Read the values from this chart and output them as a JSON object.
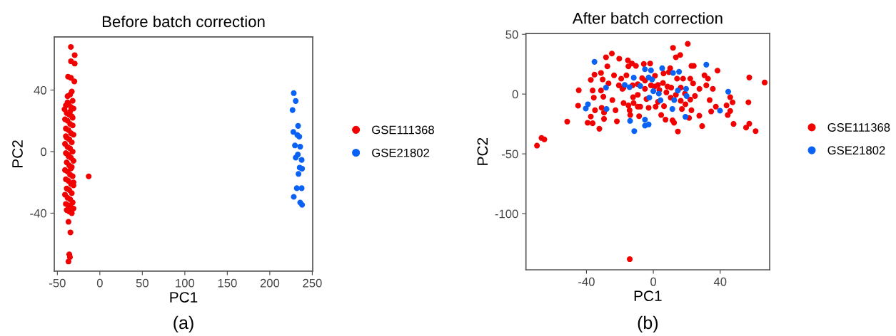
{
  "chart_data": [
    {
      "type": "scatter",
      "title": "Before batch correction",
      "xlabel": "PC1",
      "ylabel": "PC2",
      "xlim": [
        -53.6,
        250.5
      ],
      "ylim": [
        -77.7,
        74.5
      ],
      "xticks": [
        -50,
        0,
        50,
        100,
        150,
        200,
        250
      ],
      "yticks": [
        -40,
        0,
        40
      ],
      "grid": false,
      "marker": "circle",
      "legend": "right",
      "annotations": [
        "(a)"
      ],
      "series": [
        {
          "name": "GSE111368",
          "color": "#f20000",
          "x": [
            -34.1,
            -29.6,
            -34,
            -29.6,
            -37.4,
            -34,
            -30,
            -33,
            -41.6,
            -13.1,
            -36.9,
            -34.6,
            -36,
            -35.2,
            -36.9,
            -38,
            -35,
            -32,
            -40,
            -37,
            -34,
            -31,
            -39,
            -36,
            -33,
            -41,
            -38,
            -35,
            -32,
            -40,
            -37,
            -34,
            -31,
            -39,
            -36,
            -33,
            -41,
            -38,
            -35,
            -32,
            -40,
            -37,
            -34,
            -31,
            -39,
            -36,
            -33,
            -41,
            -38,
            -35,
            -32,
            -40,
            -37,
            -34,
            -31,
            -39,
            -36,
            -33,
            -41,
            -38,
            -35,
            -32,
            -40,
            -37,
            -34,
            -31,
            -39,
            -36,
            -33,
            -38,
            -35,
            -32,
            -40,
            -37,
            -34,
            -31
          ],
          "values": [
            68,
            62.7,
            58.7,
            57.2,
            48.7,
            47.9,
            45.6,
            39,
            27.5,
            -16.1,
            -45.6,
            -52.5,
            -66.8,
            -68.6,
            -71.4,
            36,
            37,
            33,
            30,
            31,
            29,
            28,
            25,
            24,
            23,
            21,
            20,
            18,
            17,
            15,
            14,
            12,
            11,
            9,
            8,
            6,
            5,
            3,
            2,
            0,
            -1,
            -3,
            -4,
            -6,
            -7,
            -9,
            -10,
            -12,
            -13,
            -15,
            -16,
            -18,
            -19,
            -21,
            -22,
            -24,
            -25,
            -27,
            -28,
            -30,
            -31,
            -33,
            -34,
            -35,
            -36,
            -37,
            -38,
            -39,
            -40,
            32,
            26,
            22,
            10,
            -2,
            -11,
            -20
          ]
        },
        {
          "name": "GSE21802",
          "color": "#0a62f5",
          "x": [
            228.2,
            230.5,
            226.8,
            233.3,
            227.7,
            234.7,
            229.6,
            235.8,
            233,
            230.5,
            237.5,
            235.2,
            238,
            233.8,
            231.8,
            237.5,
            228.2,
            235.8,
            238,
            232.4
          ],
          "values": [
            38,
            32.9,
            27,
            16.7,
            12.8,
            9.7,
            4,
            3.2,
            -1.9,
            -3.9,
            -5.4,
            -10.4,
            -11.1,
            -14.5,
            -23.8,
            -23.8,
            -29.4,
            -33.1,
            -34.6,
            10.8
          ]
        }
      ]
    },
    {
      "type": "scatter",
      "title": "After batch correction",
      "xlabel": "PC1",
      "ylabel": "PC2",
      "xlim": [
        -76.2,
        69.6
      ],
      "ylim": [
        -147,
        50.6
      ],
      "xticks": [
        -40,
        0,
        40
      ],
      "yticks": [
        50,
        0,
        -50,
        -100
      ],
      "grid": false,
      "marker": "circle",
      "legend": "right",
      "annotations": [
        "(b)"
      ],
      "series": [
        {
          "name": "GSE111368",
          "color": "#f20000",
          "x": [
            -69.6,
            -66.9,
            -65.2,
            -51.5,
            -44.6,
            -45,
            -39.3,
            -37.4,
            -35.2,
            -36.3,
            -35.6,
            -34.9,
            -37.4,
            -36.3,
            -32.3,
            -31.3,
            -30.3,
            -31.3,
            -29.9,
            -30.9,
            -29.5,
            -29.5,
            -28.3,
            -27.5,
            -26.8,
            -24.8,
            -24.5,
            -23.5,
            -22.6,
            -21.8,
            -20.4,
            -19.2,
            -18.5,
            -17.8,
            -16.1,
            -15.2,
            -14.9,
            -12.8,
            -14.2,
            -13.8,
            -12.4,
            -11.8,
            -10.4,
            -9.3,
            -8.5,
            -7.8,
            -6.7,
            -5.7,
            -5,
            -4.1,
            -2.8,
            -1.9,
            -1.4,
            1,
            1.4,
            2.8,
            4.7,
            6.1,
            5.8,
            6.4,
            7.3,
            8.5,
            9.3,
            10.1,
            10.4,
            11.5,
            11.8,
            12.4,
            13.5,
            14.2,
            14.7,
            16.1,
            16.4,
            17.1,
            17.8,
            18.9,
            20.6,
            21.4,
            22.1,
            22.8,
            24.2,
            23.8,
            22.8,
            24.9,
            27.6,
            27.5,
            29.2,
            30.6,
            31.7,
            32.7,
            33.7,
            34.6,
            35.6,
            37.4,
            38.4,
            43.8,
            44.5,
            46,
            47.4,
            48,
            46,
            57.4,
            56.9,
            55.5,
            57.4,
            61.2,
            66.6,
            -14.1,
            -9.3,
            -5,
            0.7,
            3.6,
            7.8,
            10.7,
            13.5,
            19.2,
            22.1,
            -12.1,
            -17.8,
            -20.6,
            -14.9,
            -9.3,
            2.8,
            16.4
          ],
          "values": [
            -43.1,
            -36.7,
            -37.9,
            -23,
            3.2,
            -9.7,
            -24,
            11.9,
            16.3,
            3,
            -3,
            -13.5,
            -18.8,
            -24.4,
            -29,
            17.7,
            12.3,
            3,
            -2.2,
            -11.5,
            -15.5,
            -20.8,
            30.8,
            23.2,
            8.9,
            33.9,
            -5,
            15.7,
            -13.5,
            -22.8,
            29.6,
            12.9,
            4.4,
            -7.5,
            15.7,
            28.2,
            23.2,
            25.6,
            -13.5,
            -17.5,
            7.3,
            -7.5,
            23.6,
            -0.6,
            -18.5,
            -10.5,
            13.3,
            25.2,
            4.4,
            -4.2,
            -11.5,
            25.6,
            7.3,
            15.3,
            -10.5,
            7.7,
            -17.5,
            17.3,
            9.3,
            -10.1,
            -21.4,
            6.3,
            18.3,
            21.6,
            -3,
            -22,
            38.7,
            -24,
            30.8,
            12.9,
            -31.3,
            32.7,
            -5.6,
            -12.5,
            12.9,
            0.4,
            42,
            -20,
            12.9,
            23.6,
            23.6,
            8.9,
            -13.5,
            -1.6,
            4.4,
            -18.1,
            -26.8,
            15.7,
            7.3,
            12.9,
            -5,
            -14.5,
            4.4,
            -10.5,
            19.6,
            -9.5,
            -17.5,
            -2.6,
            -6.9,
            -25,
            -14.1,
            13.9,
            -6.9,
            -28,
            -24.8,
            -31,
            9.7,
            -138.1,
            8.3,
            11.3,
            6.3,
            3.4,
            1.4,
            5.4,
            -0.6,
            -8.5,
            -4.6,
            -2.6,
            5.4,
            7.3,
            -9.5,
            -10.5,
            -6.5,
            5.4
          ]
        },
        {
          "name": "GSE21802",
          "color": "#0a62f5",
          "x": [
            -35.2,
            -39.1,
            -40.4,
            -28.3,
            -28,
            -17.1,
            -14.2,
            -11.7,
            -13.9,
            -11.4,
            -7.8,
            -5,
            -1.4,
            -2.8,
            -0.7,
            -2.4,
            0,
            3.3,
            4.3,
            5.3,
            -5,
            -5,
            -2.8,
            11.8,
            15.4,
            14.7,
            12.5,
            11.4,
            19.6,
            19.9,
            19.2,
            31.7,
            39.9,
            44.8
          ],
          "values": [
            27,
            -8.5,
            -12.1,
            5.4,
            -12.5,
            7.7,
            5.8,
            13.7,
            -22.4,
            -31,
            6.7,
            20.8,
            19.8,
            13.9,
            12.3,
            -3,
            2.4,
            0.4,
            -5.2,
            21.6,
            -21.4,
            -26.4,
            -25.4,
            17.7,
            18.7,
            3,
            -5,
            -12.5,
            4.4,
            -1.6,
            -19,
            24.6,
            -13.9,
            2
          ]
        }
      ]
    }
  ]
}
